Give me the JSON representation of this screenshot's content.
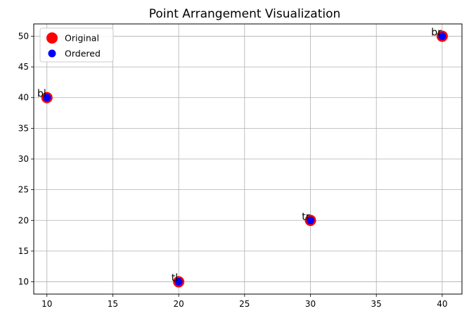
{
  "chart_data": {
    "type": "scatter",
    "title": "Point Arrangement Visualization",
    "xlabel": "",
    "ylabel": "",
    "xlim": [
      9.0,
      41.5
    ],
    "ylim": [
      8.0,
      52.0
    ],
    "xticks": [
      10,
      15,
      20,
      25,
      30,
      35,
      40
    ],
    "yticks": [
      10,
      15,
      20,
      25,
      30,
      35,
      40,
      45,
      50
    ],
    "grid": true,
    "legend": {
      "placement": "top-left",
      "entries": [
        "Original",
        "Ordered"
      ]
    },
    "series": [
      {
        "name": "Original",
        "color": "#ff0000",
        "points": [
          {
            "x": 20,
            "y": 10
          },
          {
            "x": 30,
            "y": 20
          },
          {
            "x": 40,
            "y": 50
          },
          {
            "x": 10,
            "y": 40
          }
        ]
      },
      {
        "name": "Ordered",
        "color": "#0000ff",
        "points": [
          {
            "x": 20,
            "y": 10
          },
          {
            "x": 30,
            "y": 20
          },
          {
            "x": 40,
            "y": 50
          },
          {
            "x": 10,
            "y": 40
          }
        ]
      }
    ],
    "annotations": [
      {
        "text": "tl",
        "x": 20,
        "y": 10
      },
      {
        "text": "tr",
        "x": 30,
        "y": 20
      },
      {
        "text": "br",
        "x": 40,
        "y": 50
      },
      {
        "text": "bl",
        "x": 10,
        "y": 40
      }
    ]
  }
}
